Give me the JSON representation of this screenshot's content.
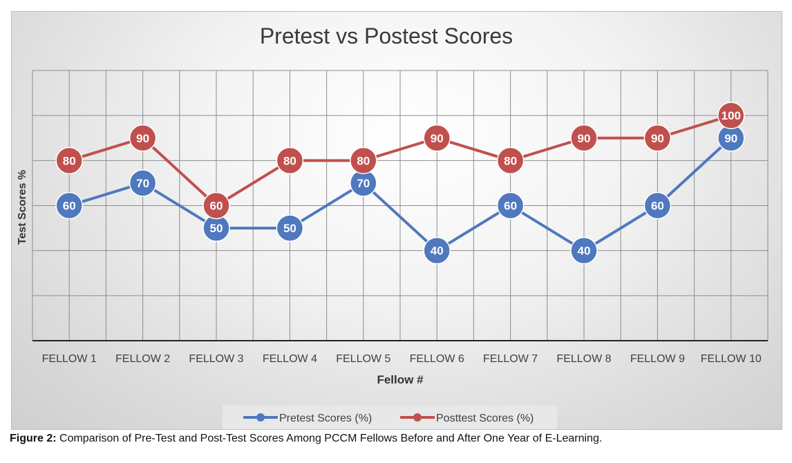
{
  "chart_data": {
    "type": "line",
    "title": "Pretest vs Postest Scores",
    "xlabel": "Fellow #",
    "ylabel": "Test Scores %",
    "categories": [
      "FELLOW 1",
      "FELLOW 2",
      "FELLOW 3",
      "FELLOW 4",
      "FELLOW 5",
      "FELLOW 6",
      "FELLOW 7",
      "FELLOW 8",
      "FELLOW 9",
      "FELLOW 10"
    ],
    "series": [
      {
        "name": "Pretest Scores (%)",
        "color": "#4f78be",
        "values": [
          60,
          70,
          50,
          50,
          70,
          40,
          60,
          40,
          60,
          90
        ]
      },
      {
        "name": "Posttest Scores (%)",
        "color": "#c0504d",
        "values": [
          80,
          90,
          60,
          80,
          80,
          90,
          80,
          90,
          90,
          100
        ]
      }
    ],
    "ylim": [
      0,
      120
    ],
    "grid": true,
    "legend": "bottom",
    "data_labels": true
  },
  "caption": {
    "label": "Figure 2:",
    "text": "Comparison of Pre-Test and Post-Test Scores Among PCCM Fellows Before and After One Year of E-Learning."
  }
}
